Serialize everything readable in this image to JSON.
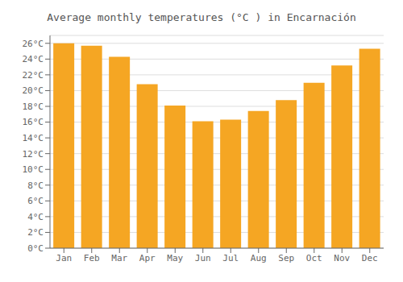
{
  "chart_data": {
    "type": "bar",
    "title": "Average monthly temperatures (°C ) in Encarnación",
    "categories": [
      "Jan",
      "Feb",
      "Mar",
      "Apr",
      "May",
      "Jun",
      "Jul",
      "Aug",
      "Sep",
      "Oct",
      "Nov",
      "Dec"
    ],
    "values": [
      26.0,
      25.7,
      24.3,
      20.8,
      18.1,
      16.1,
      16.3,
      17.4,
      18.8,
      21.0,
      23.2,
      25.3
    ],
    "color": "#F5A623",
    "ylim": [
      0,
      27
    ],
    "yticks": [
      {
        "value": 0,
        "label": "0°C"
      },
      {
        "value": 2,
        "label": "2°C"
      },
      {
        "value": 4,
        "label": "4°C"
      },
      {
        "value": 6,
        "label": "6°C"
      },
      {
        "value": 8,
        "label": "8°C"
      },
      {
        "value": 10,
        "label": "10°C"
      },
      {
        "value": 12,
        "label": "12°C"
      },
      {
        "value": 14,
        "label": "14°C"
      },
      {
        "value": 16,
        "label": "16°C"
      },
      {
        "value": 18,
        "label": "18°C"
      },
      {
        "value": 20,
        "label": "20°C"
      },
      {
        "value": 22,
        "label": "22°C"
      },
      {
        "value": 24,
        "label": "24°C"
      },
      {
        "value": 26,
        "label": "26°C"
      }
    ],
    "grid": true
  }
}
